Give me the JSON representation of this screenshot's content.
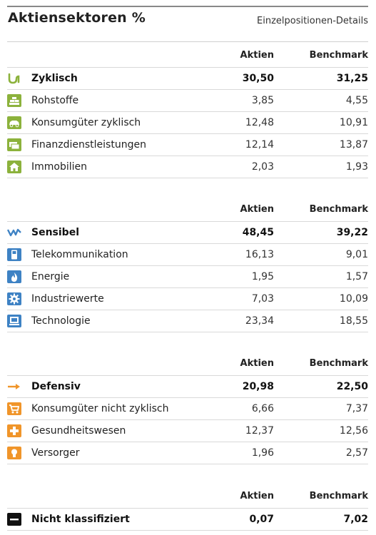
{
  "header": {
    "title": "Aktiensektoren %",
    "details_link": "Einzelpositionen-Details"
  },
  "colors": {
    "zyklisch": "#8cb23c",
    "sensibel": "#3e82c4",
    "defensiv": "#f0952a",
    "nicht_klassifiziert": "#111111"
  },
  "sections": [
    {
      "col_aktien": "Aktien",
      "col_benchmark": "Benchmark",
      "main": {
        "icon": "cyclical-wave-icon",
        "name": "Zyklisch",
        "aktien": "30,50",
        "benchmark": "31,25"
      },
      "rows": [
        {
          "icon": "bricks-icon",
          "name": "Rohstoffe",
          "aktien": "3,85",
          "benchmark": "4,55"
        },
        {
          "icon": "car-icon",
          "name": "Konsumgüter zyklisch",
          "aktien": "12,48",
          "benchmark": "10,91"
        },
        {
          "icon": "money-icon",
          "name": "Finanzdienstleistungen",
          "aktien": "12,14",
          "benchmark": "13,87"
        },
        {
          "icon": "house-icon",
          "name": "Immobilien",
          "aktien": "2,03",
          "benchmark": "1,93"
        }
      ]
    },
    {
      "col_aktien": "Aktien",
      "col_benchmark": "Benchmark",
      "main": {
        "icon": "sensitive-wave-icon",
        "name": "Sensibel",
        "aktien": "48,45",
        "benchmark": "39,22"
      },
      "rows": [
        {
          "icon": "phone-icon",
          "name": "Telekommunikation",
          "aktien": "16,13",
          "benchmark": "9,01"
        },
        {
          "icon": "flame-icon",
          "name": "Energie",
          "aktien": "1,95",
          "benchmark": "1,57"
        },
        {
          "icon": "gear-icon",
          "name": "Industriewerte",
          "aktien": "7,03",
          "benchmark": "10,09"
        },
        {
          "icon": "computer-icon",
          "name": "Technologie",
          "aktien": "23,34",
          "benchmark": "18,55"
        }
      ]
    },
    {
      "col_aktien": "Aktien",
      "col_benchmark": "Benchmark",
      "main": {
        "icon": "arrow-right-icon",
        "name": "Defensiv",
        "aktien": "20,98",
        "benchmark": "22,50"
      },
      "rows": [
        {
          "icon": "shopping-cart-icon",
          "name": "Konsumgüter nicht zyklisch",
          "aktien": "6,66",
          "benchmark": "7,37"
        },
        {
          "icon": "medical-cross-icon",
          "name": "Gesundheitswesen",
          "aktien": "12,37",
          "benchmark": "12,56"
        },
        {
          "icon": "lightbulb-icon",
          "name": "Versorger",
          "aktien": "1,96",
          "benchmark": "2,57"
        }
      ]
    },
    {
      "col_aktien": "Aktien",
      "col_benchmark": "Benchmark",
      "main": {
        "icon": "minus-box-icon",
        "name": "Nicht klassifiziert",
        "aktien": "0,07",
        "benchmark": "7,02"
      },
      "rows": []
    }
  ]
}
